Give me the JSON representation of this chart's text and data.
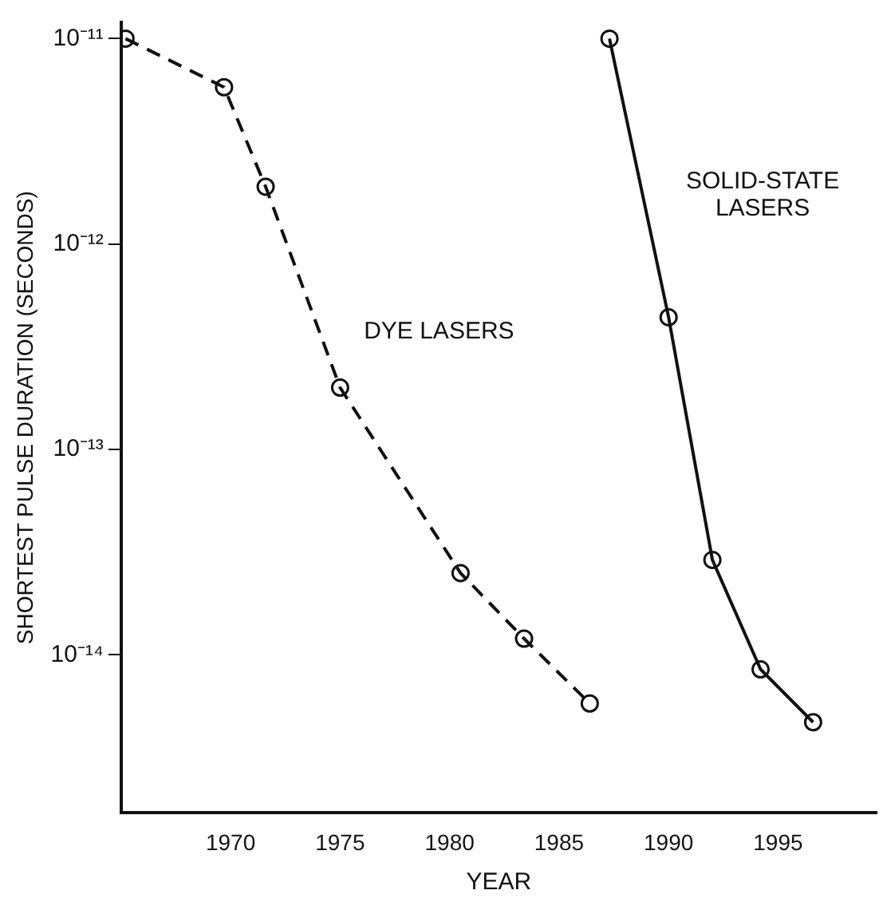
{
  "chart_data": {
    "type": "line",
    "xlabel": "YEAR",
    "ylabel": "SHORTEST PULSE DURATION (SECONDS)",
    "log": "y",
    "xlim": [
      1965,
      1999.5
    ],
    "xticks": [
      1970,
      1975,
      1980,
      1985,
      1990,
      1995
    ],
    "ylim": [
      1.7e-15,
      1.2e-11
    ],
    "yticks": [
      {
        "value": 1e-11,
        "label": "10⁻¹¹"
      },
      {
        "value": 1e-12,
        "label": "10⁻¹²"
      },
      {
        "value": 1e-13,
        "label": "10⁻¹³"
      },
      {
        "value": 1e-14,
        "label": "10⁻¹⁴"
      }
    ],
    "grid": false,
    "legend": false,
    "marker": "circle",
    "series": [
      {
        "name": "DYE LASERS",
        "color": "#111111",
        "line_style": "dashed",
        "x": [
          1965.2,
          1969.7,
          1971.6,
          1975.0,
          1980.5,
          1983.4,
          1986.4
        ],
        "values": [
          1e-11,
          5.8e-12,
          1.9e-12,
          2e-13,
          2.5e-14,
          1.2e-14,
          5.8e-15
        ]
      },
      {
        "name": "SOLID-STATE LASERS",
        "color": "#111111",
        "line_style": "solid",
        "x": [
          1987.3,
          1990.0,
          1992.0,
          1994.2,
          1996.6
        ],
        "values": [
          1e-11,
          4.4e-13,
          2.9e-14,
          8.5e-15,
          4.7e-15
        ]
      }
    ]
  }
}
